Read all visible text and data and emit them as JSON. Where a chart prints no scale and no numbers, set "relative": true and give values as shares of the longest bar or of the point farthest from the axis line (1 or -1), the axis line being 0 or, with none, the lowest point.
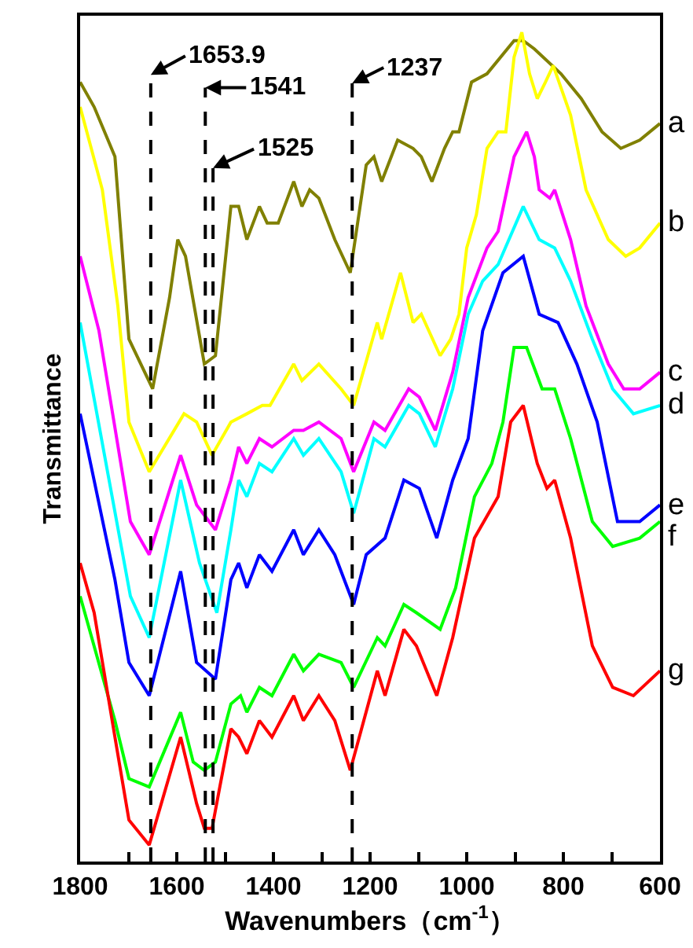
{
  "chart_data": {
    "type": "line",
    "relative": true,
    "xlabel": "Wavenumbers（cm$^{-1}$）",
    "ylabel": "Transmittance",
    "legend": false,
    "tick_labels": "x",
    "xlim": [
      1800,
      600
    ],
    "xticks": [
      1800,
      {
        "value": 1700,
        "label": null
      },
      1600,
      {
        "value": 1500,
        "label": null
      },
      1400,
      {
        "value": 1300,
        "label": null
      },
      1200,
      {
        "value": 1100,
        "label": null
      },
      1000,
      {
        "value": 900,
        "label": null
      },
      800,
      {
        "value": 700,
        "label": null
      },
      600
    ],
    "ref_lines": [
      {
        "axis": "x",
        "value": 1653.9,
        "label": "1653.9",
        "color": "#000000",
        "line_style": "dashed"
      },
      {
        "axis": "x",
        "value": 1541,
        "label": "1541",
        "color": "#000000",
        "line_style": "dashed"
      },
      {
        "axis": "x",
        "value": 1525,
        "label": "1525",
        "color": "#000000",
        "line_style": "dashed"
      },
      {
        "axis": "x",
        "value": 1237,
        "label": "1237",
        "color": "#000000",
        "line_style": "dashed"
      }
    ],
    "series": [
      {
        "name": "a",
        "color": "#808000",
        "x": [
          1800,
          1771,
          1728,
          1699,
          1650,
          1615,
          1598,
          1582,
          1543,
          1520,
          1488,
          1472,
          1455,
          1429,
          1413,
          1390,
          1358,
          1341,
          1325,
          1306,
          1273,
          1241,
          1208,
          1192,
          1176,
          1143,
          1111,
          1094,
          1072,
          1046,
          1029,
          1016,
          990,
          958,
          902,
          883,
          860,
          805,
          763,
          720,
          681,
          642,
          600
        ],
        "values": [
          0.94,
          0.91,
          0.85,
          0.63,
          0.57,
          0.68,
          0.75,
          0.73,
          0.6,
          0.61,
          0.79,
          0.79,
          0.75,
          0.79,
          0.77,
          0.77,
          0.82,
          0.79,
          0.81,
          0.8,
          0.75,
          0.71,
          0.84,
          0.85,
          0.82,
          0.87,
          0.86,
          0.85,
          0.82,
          0.86,
          0.88,
          0.88,
          0.94,
          0.95,
          0.99,
          0.99,
          0.98,
          0.95,
          0.92,
          0.88,
          0.86,
          0.87,
          0.89
        ]
      },
      {
        "name": "b",
        "color": "#ffff00",
        "x": [
          1800,
          1754,
          1722,
          1699,
          1657,
          1585,
          1559,
          1527,
          1488,
          1455,
          1423,
          1407,
          1358,
          1341,
          1306,
          1260,
          1234,
          1185,
          1176,
          1137,
          1111,
          1094,
          1055,
          1033,
          1016,
          1000,
          980,
          958,
          935,
          919,
          902,
          886,
          870,
          854,
          837,
          821,
          785,
          753,
          707,
          671,
          642,
          600
        ],
        "values": [
          0.91,
          0.81,
          0.67,
          0.53,
          0.47,
          0.54,
          0.53,
          0.49,
          0.53,
          0.54,
          0.55,
          0.55,
          0.6,
          0.58,
          0.6,
          0.57,
          0.55,
          0.65,
          0.63,
          0.71,
          0.65,
          0.66,
          0.61,
          0.63,
          0.66,
          0.74,
          0.78,
          0.86,
          0.88,
          0.88,
          0.97,
          1.0,
          0.95,
          0.92,
          0.94,
          0.96,
          0.9,
          0.81,
          0.75,
          0.73,
          0.74,
          0.77
        ]
      },
      {
        "name": "c",
        "color": "#ff00ff",
        "x": [
          1800,
          1761,
          1696,
          1657,
          1592,
          1559,
          1520,
          1488,
          1472,
          1455,
          1429,
          1403,
          1358,
          1338,
          1306,
          1260,
          1234,
          1192,
          1169,
          1120,
          1098,
          1065,
          1029,
          997,
          958,
          935,
          902,
          876,
          860,
          850,
          828,
          818,
          785,
          753,
          707,
          675,
          642,
          600
        ],
        "values": [
          0.73,
          0.64,
          0.41,
          0.37,
          0.49,
          0.43,
          0.4,
          0.46,
          0.5,
          0.48,
          0.51,
          0.5,
          0.52,
          0.52,
          0.53,
          0.51,
          0.47,
          0.53,
          0.52,
          0.57,
          0.56,
          0.52,
          0.59,
          0.68,
          0.74,
          0.76,
          0.85,
          0.88,
          0.85,
          0.81,
          0.8,
          0.81,
          0.75,
          0.67,
          0.6,
          0.57,
          0.57,
          0.59
        ]
      },
      {
        "name": "d",
        "color": "#00ffff",
        "x": [
          1800,
          1696,
          1657,
          1592,
          1553,
          1517,
          1488,
          1472,
          1455,
          1429,
          1403,
          1358,
          1338,
          1306,
          1260,
          1234,
          1192,
          1169,
          1120,
          1098,
          1065,
          1029,
          997,
          967,
          935,
          883,
          850,
          818,
          785,
          740,
          698,
          655,
          600
        ],
        "values": [
          0.65,
          0.32,
          0.27,
          0.46,
          0.36,
          0.3,
          0.4,
          0.46,
          0.44,
          0.48,
          0.47,
          0.51,
          0.49,
          0.51,
          0.47,
          0.42,
          0.51,
          0.5,
          0.55,
          0.54,
          0.5,
          0.57,
          0.66,
          0.7,
          0.72,
          0.79,
          0.75,
          0.74,
          0.7,
          0.63,
          0.57,
          0.54,
          0.55
        ]
      },
      {
        "name": "e",
        "color": "#0000ff",
        "x": [
          1800,
          1728,
          1699,
          1657,
          1592,
          1559,
          1520,
          1488,
          1472,
          1455,
          1429,
          1403,
          1358,
          1338,
          1306,
          1273,
          1234,
          1208,
          1169,
          1130,
          1098,
          1062,
          1029,
          997,
          967,
          925,
          883,
          850,
          811,
          772,
          730,
          688,
          642,
          600
        ],
        "values": [
          0.54,
          0.34,
          0.24,
          0.2,
          0.35,
          0.24,
          0.22,
          0.34,
          0.36,
          0.33,
          0.37,
          0.35,
          0.4,
          0.37,
          0.4,
          0.37,
          0.31,
          0.37,
          0.39,
          0.46,
          0.45,
          0.39,
          0.46,
          0.51,
          0.64,
          0.71,
          0.73,
          0.66,
          0.65,
          0.6,
          0.53,
          0.41,
          0.41,
          0.43
        ]
      },
      {
        "name": "f",
        "color": "#00ff00",
        "x": [
          1800,
          1728,
          1699,
          1657,
          1592,
          1566,
          1543,
          1520,
          1488,
          1468,
          1455,
          1429,
          1403,
          1358,
          1338,
          1306,
          1260,
          1234,
          1185,
          1169,
          1130,
          1104,
          1055,
          1023,
          984,
          948,
          925,
          902,
          876,
          844,
          818,
          785,
          740,
          698,
          642,
          600
        ],
        "values": [
          0.32,
          0.17,
          0.1,
          0.09,
          0.18,
          0.12,
          0.11,
          0.12,
          0.19,
          0.2,
          0.18,
          0.21,
          0.2,
          0.25,
          0.23,
          0.25,
          0.24,
          0.21,
          0.27,
          0.26,
          0.31,
          0.3,
          0.28,
          0.33,
          0.44,
          0.48,
          0.53,
          0.62,
          0.62,
          0.57,
          0.57,
          0.51,
          0.41,
          0.38,
          0.39,
          0.41
        ]
      },
      {
        "name": "g",
        "color": "#ff0000",
        "x": [
          1800,
          1771,
          1728,
          1699,
          1657,
          1592,
          1559,
          1543,
          1527,
          1511,
          1488,
          1472,
          1455,
          1429,
          1403,
          1358,
          1338,
          1306,
          1273,
          1241,
          1185,
          1169,
          1130,
          1104,
          1062,
          1029,
          984,
          935,
          909,
          883,
          854,
          834,
          818,
          785,
          740,
          698,
          655,
          600
        ],
        "values": [
          0.36,
          0.3,
          0.15,
          0.05,
          0.02,
          0.15,
          0.07,
          0.04,
          0.04,
          0.09,
          0.16,
          0.15,
          0.13,
          0.17,
          0.15,
          0.2,
          0.17,
          0.2,
          0.17,
          0.11,
          0.23,
          0.2,
          0.28,
          0.26,
          0.2,
          0.27,
          0.39,
          0.44,
          0.53,
          0.55,
          0.48,
          0.45,
          0.46,
          0.39,
          0.26,
          0.21,
          0.2,
          0.23
        ]
      }
    ]
  }
}
